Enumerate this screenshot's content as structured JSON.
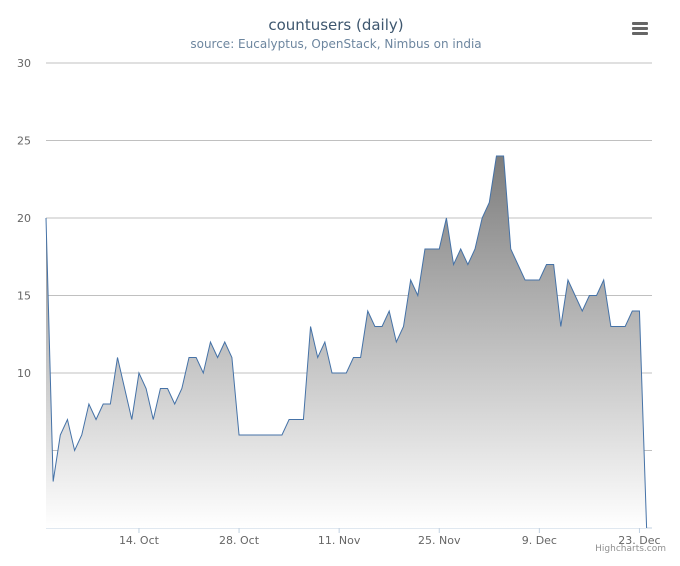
{
  "chart_data": {
    "type": "area",
    "title": "countusers (daily)",
    "subtitle": "source: Eucalyptus, OpenStack, Nimbus on india",
    "xlabel": "",
    "ylabel": "",
    "ylim": [
      0,
      30
    ],
    "yticks": [
      {
        "value": 10,
        "label": "10"
      },
      {
        "value": 15,
        "label": "15"
      },
      {
        "value": 20,
        "label": "20"
      },
      {
        "value": 25,
        "label": "25"
      },
      {
        "value": 30,
        "label": "30"
      }
    ],
    "gridlines_at": [
      0,
      5,
      10,
      15,
      20,
      25,
      30
    ],
    "x_start": "2013-10-01",
    "xticks": [
      {
        "date": "2013-10-14",
        "label": "14. Oct"
      },
      {
        "date": "2013-10-28",
        "label": "28. Oct"
      },
      {
        "date": "2013-11-11",
        "label": "11. Nov"
      },
      {
        "date": "2013-11-25",
        "label": "25. Nov"
      },
      {
        "date": "2013-12-09",
        "label": "9. Dec"
      },
      {
        "date": "2013-12-23",
        "label": "23. Dec"
      }
    ],
    "series": [
      {
        "values": [
          20,
          3,
          6,
          7,
          5,
          6,
          8,
          7,
          8,
          8,
          11,
          9,
          7,
          10,
          9,
          7,
          9,
          9,
          8,
          9,
          11,
          11,
          10,
          12,
          11,
          12,
          11,
          6,
          6,
          6,
          6,
          6,
          6,
          6,
          7,
          7,
          7,
          13,
          11,
          12,
          10,
          10,
          10,
          11,
          11,
          14,
          13,
          13,
          14,
          12,
          13,
          16,
          15,
          18,
          18,
          18,
          20,
          17,
          18,
          17,
          18,
          20,
          21,
          24,
          24,
          18,
          17,
          16,
          16,
          16,
          17,
          17,
          13,
          16,
          15,
          14,
          15,
          15,
          16,
          13,
          13,
          13,
          14,
          14,
          0
        ],
        "color": "#4572A7"
      }
    ],
    "grid": true,
    "legend": "none"
  },
  "ui": {
    "credits": "Highcharts.com",
    "menu_icon": "hamburger-menu-icon"
  }
}
